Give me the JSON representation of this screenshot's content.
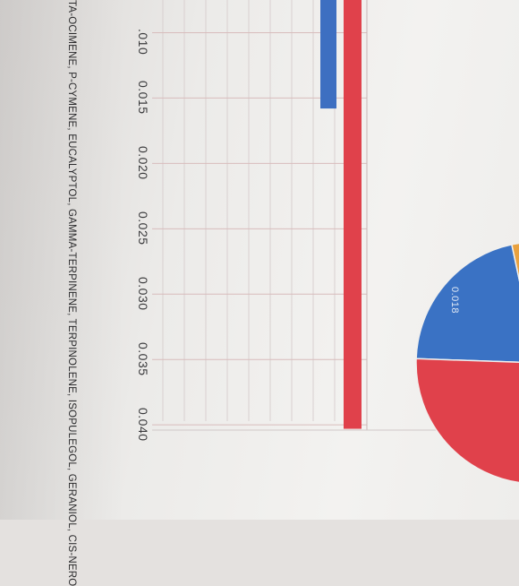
{
  "chart_data": [
    {
      "type": "bar",
      "orientation": "horizontal",
      "x_ticks": [
        ".010",
        "0.015",
        "0.020",
        "0.025",
        "0.030",
        "0.035",
        "0.040"
      ],
      "x_tick_values": [
        0.01,
        0.015,
        0.02,
        0.025,
        0.03,
        0.035,
        0.04
      ],
      "xlim": [
        0.0075,
        0.0404
      ],
      "series": [
        {
          "color": "#3d6fc1",
          "value": 0.0158
        },
        {
          "color": "#e0414b",
          "value": 0.0403
        }
      ],
      "grid": true
    },
    {
      "type": "pie",
      "slices": [
        {
          "label": "0.018",
          "value": 0.018,
          "color": "#3a72c4"
        },
        {
          "label": "",
          "value": 0.026,
          "color": "#e0414b"
        },
        {
          "label": "",
          "value": 0.006,
          "color": "#e9a13f"
        }
      ]
    }
  ],
  "legend_text": "TA-OCIMENE, P-CYMENE, EUCALYPTOL, GAMMA-TERPINENE, TERPINOLENE, ISOPULEGOL, GERANIOL, CIS-NERO"
}
